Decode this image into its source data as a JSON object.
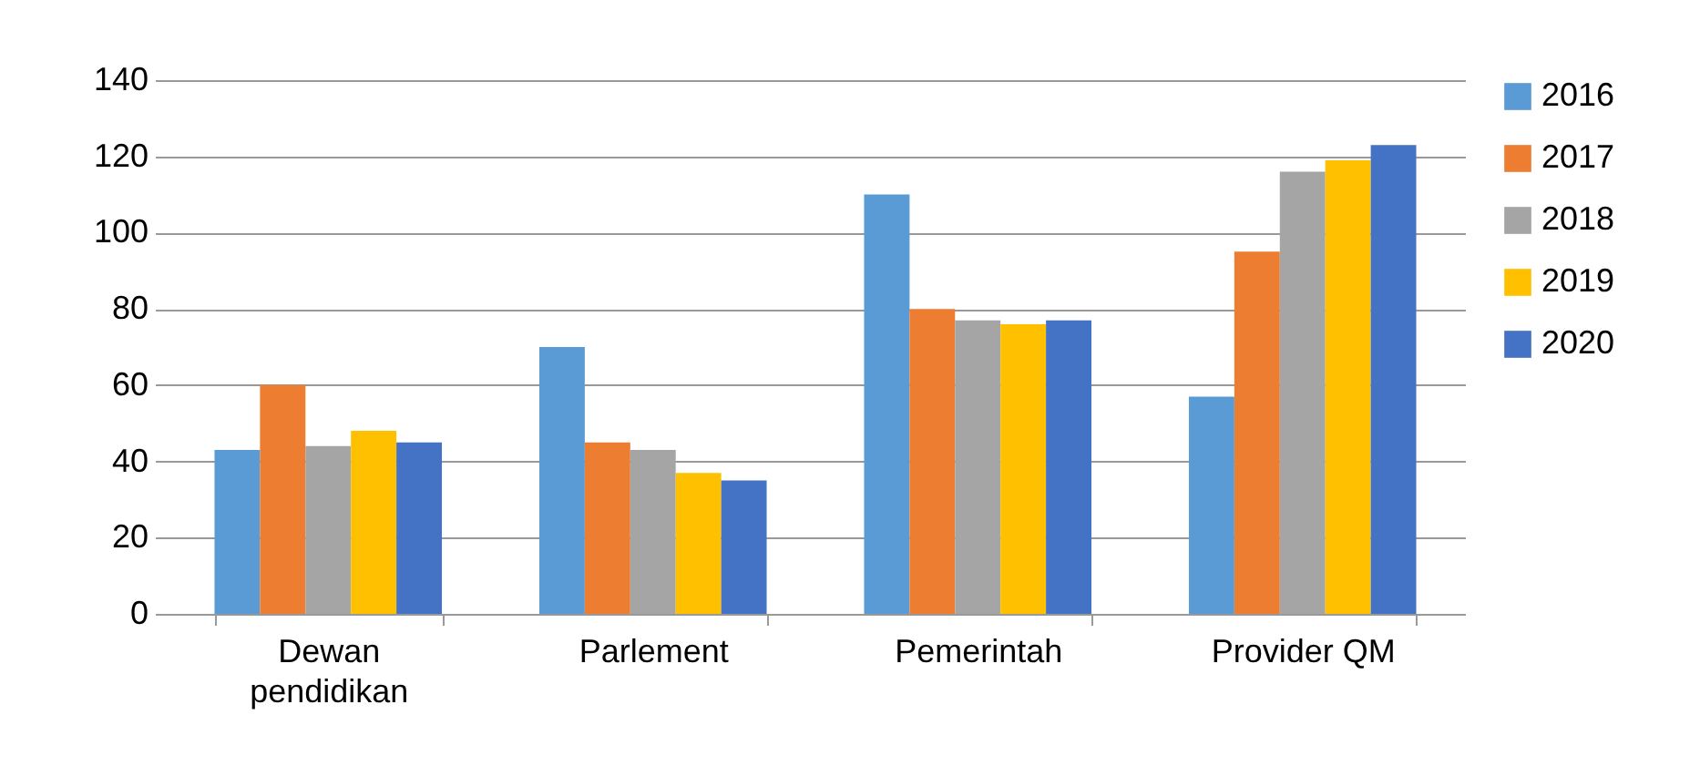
{
  "chart_data": {
    "type": "bar",
    "categories": [
      "Dewan pendidikan",
      "Parlement",
      "Pemerintah",
      "Provider QM"
    ],
    "series": [
      {
        "name": "2016",
        "color": "#5b9bd5",
        "values": [
          43,
          70,
          110,
          57
        ]
      },
      {
        "name": "2017",
        "color": "#ed7d31",
        "values": [
          60,
          45,
          80,
          95
        ]
      },
      {
        "name": "2018",
        "color": "#a5a5a5",
        "values": [
          44,
          43,
          77,
          116
        ]
      },
      {
        "name": "2019",
        "color": "#ffc000",
        "values": [
          48,
          37,
          76,
          119
        ]
      },
      {
        "name": "2020",
        "color": "#4472c4",
        "values": [
          45,
          35,
          77,
          123
        ]
      }
    ],
    "ylim": [
      0,
      140
    ],
    "yticks": [
      0,
      20,
      40,
      60,
      80,
      100,
      120,
      140
    ],
    "grid": "y",
    "legend": "right"
  }
}
